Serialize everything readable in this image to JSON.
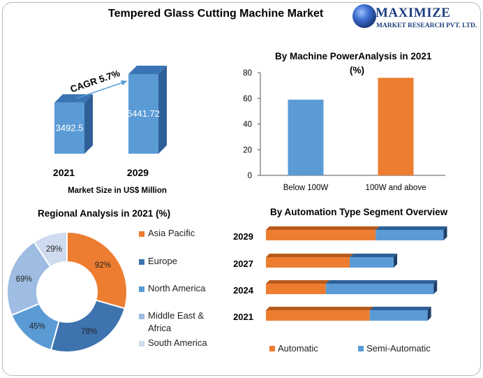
{
  "header": {
    "title": "Tempered Glass Cutting Machine Market",
    "logo_name": "MAXIMIZE",
    "logo_sub": "MARKET RESEARCH PVT. LTD."
  },
  "colors": {
    "blue": "#5b9bd5",
    "orange": "#ed7d31",
    "blue_dark": "#2e5f97",
    "orange_dark": "#b85a1c"
  },
  "chart_data": [
    {
      "type": "bar",
      "title": "",
      "xlabel": "Market Size in US$ Million",
      "categories": [
        "2021",
        "2029"
      ],
      "values": [
        3492.5,
        5441.72
      ],
      "value_labels": [
        "3492.5",
        "5441.72"
      ],
      "annotation": "CAGR 5.7%"
    },
    {
      "type": "bar",
      "title": "By Machine PowerAnalysis in 2021 (%)",
      "categories": [
        "Below 100W",
        "100W and above"
      ],
      "values": [
        59,
        76
      ],
      "ylim": [
        0,
        80
      ],
      "yticks": [
        "0",
        "20",
        "40",
        "60",
        "80"
      ],
      "grid": false
    },
    {
      "type": "pie",
      "title": "Regional Analysis in 2021 (%)",
      "labels": [
        "Asia Pacific",
        "Europe",
        "North America",
        "Middle East & Africa",
        "South America"
      ],
      "legend_lines": [
        [
          "Asia Pacific"
        ],
        [
          "Europe"
        ],
        [
          "North America"
        ],
        [
          "Middle East &",
          "Africa"
        ],
        [
          "South America"
        ]
      ],
      "values": [
        92,
        78,
        45,
        69,
        29
      ],
      "value_labels": [
        "92%",
        "78%",
        "45%",
        "69%",
        "29%"
      ],
      "colors": [
        "#ed7d31",
        "#3e73b0",
        "#5b9bd5",
        "#9fbde2",
        "#cfdcef"
      ],
      "legend": "right"
    },
    {
      "type": "bar",
      "orientation": "horizontal",
      "stacked": true,
      "title": "By Automation Type Segment Overview",
      "categories": [
        "2029",
        "2027",
        "2024",
        "2021"
      ],
      "series": [
        {
          "name": "Automatic",
          "values": [
            55,
            42,
            30,
            52
          ]
        },
        {
          "name": "Semi-Automatic",
          "values": [
            34,
            22,
            54,
            29
          ]
        }
      ],
      "legend": "bottom"
    }
  ]
}
